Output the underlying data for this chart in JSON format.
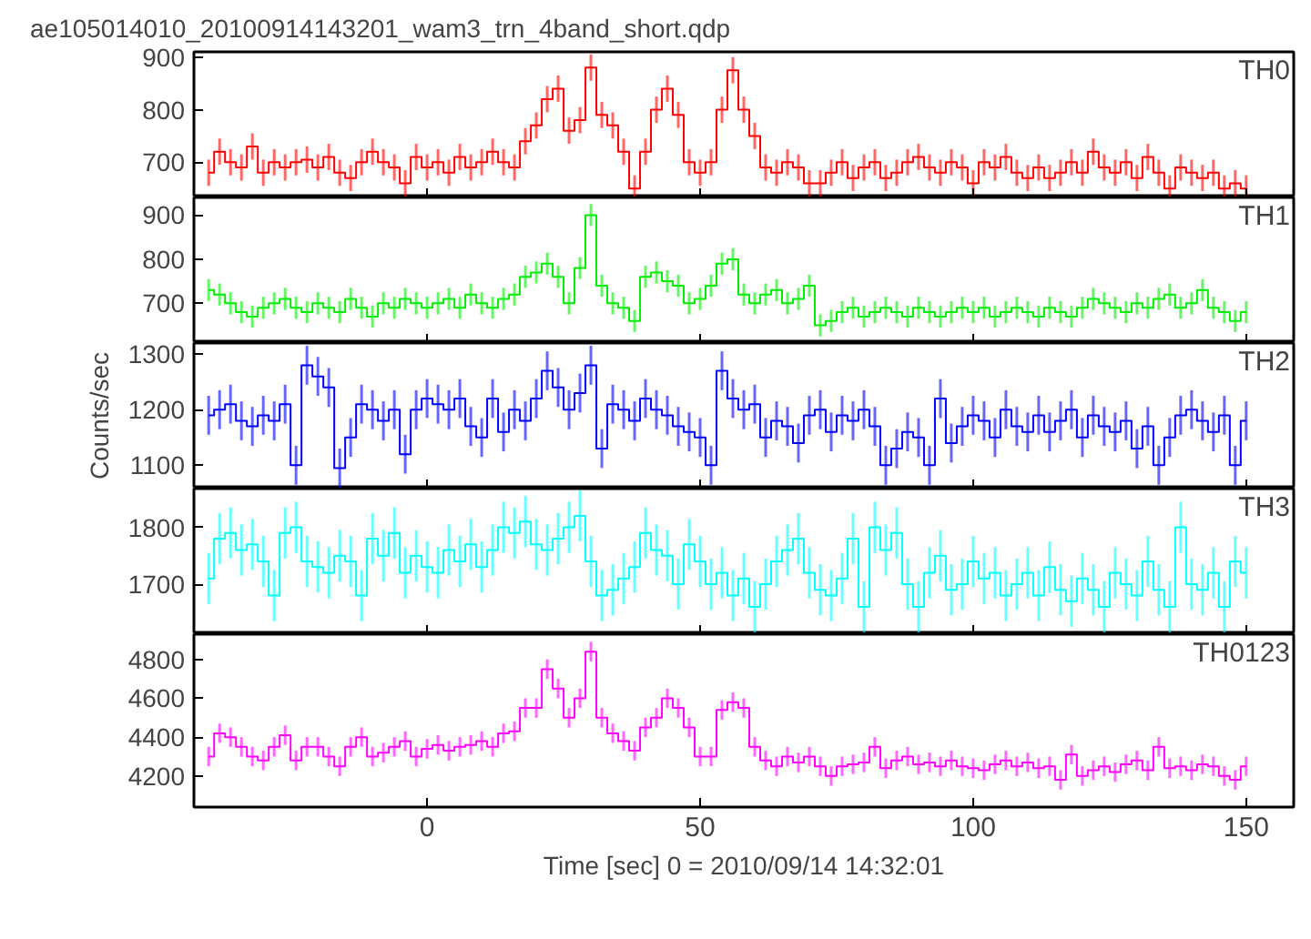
{
  "chart_data": [
    {
      "type": "step",
      "title": "ae105014010_20100914143201_wam3_trn_4band_short.qdp",
      "annotations": [
        "TH0"
      ],
      "color": "#ff0000",
      "tick_labels": "y",
      "xlim": [
        -42.7,
        158.7
      ],
      "xticks": [
        0,
        50,
        100,
        150
      ],
      "ylim": [
        633,
        910
      ],
      "yticks": [
        700,
        800,
        900
      ],
      "x": [
        -40,
        -38,
        -36,
        -34,
        -32,
        -30,
        -28,
        -26,
        -24,
        -22,
        -20,
        -18,
        -16,
        -14,
        -12,
        -10,
        -8,
        -6,
        -4,
        -2,
        0,
        2,
        4,
        6,
        8,
        10,
        12,
        14,
        16,
        18,
        20,
        22,
        24,
        26,
        28,
        30,
        32,
        34,
        36,
        38,
        40,
        42,
        44,
        46,
        48,
        50,
        52,
        54,
        56,
        58,
        60,
        62,
        64,
        66,
        68,
        70,
        72,
        74,
        76,
        78,
        80,
        82,
        84,
        86,
        88,
        90,
        92,
        94,
        96,
        98,
        100,
        102,
        104,
        106,
        108,
        110,
        112,
        114,
        116,
        118,
        120,
        122,
        124,
        126,
        128,
        130,
        132,
        134,
        136,
        138,
        140,
        142,
        144,
        146,
        148,
        150
      ],
      "values": [
        680,
        720,
        700,
        690,
        730,
        680,
        700,
        690,
        700,
        705,
        690,
        710,
        680,
        670,
        700,
        720,
        700,
        690,
        660,
        710,
        690,
        700,
        680,
        710,
        690,
        700,
        720,
        700,
        690,
        740,
        770,
        820,
        840,
        760,
        780,
        880,
        790,
        770,
        720,
        650,
        720,
        800,
        840,
        790,
        700,
        680,
        700,
        800,
        875,
        800,
        750,
        690,
        680,
        700,
        690,
        660,
        660,
        680,
        700,
        670,
        690,
        700,
        670,
        680,
        700,
        710,
        690,
        680,
        700,
        690,
        660,
        700,
        690,
        710,
        680,
        670,
        690,
        670,
        680,
        700,
        680,
        720,
        690,
        680,
        700,
        670,
        710,
        680,
        650,
        690,
        680,
        670,
        680,
        650,
        660,
        650
      ],
      "errors": [
        25,
        25,
        25,
        25,
        25,
        25,
        25,
        25,
        25,
        25,
        25,
        25,
        25,
        25,
        25,
        25,
        25,
        25,
        25,
        25,
        25,
        25,
        25,
        25,
        25,
        25,
        25,
        25,
        25,
        25,
        25,
        25,
        25,
        25,
        25,
        25,
        25,
        25,
        25,
        25,
        25,
        25,
        25,
        25,
        25,
        25,
        25,
        25,
        25,
        25,
        25,
        25,
        25,
        25,
        25,
        25,
        25,
        25,
        25,
        25,
        25,
        25,
        25,
        25,
        25,
        25,
        25,
        25,
        25,
        25,
        25,
        25,
        25,
        25,
        25,
        25,
        25,
        25,
        25,
        25,
        25,
        25,
        25,
        25,
        25,
        25,
        25,
        25,
        25,
        25,
        25,
        25,
        25,
        25,
        25,
        25
      ]
    },
    {
      "type": "step",
      "annotations": [
        "TH1"
      ],
      "color": "#00ee00",
      "tick_labels": "y",
      "xlim": [
        -42.7,
        158.7
      ],
      "xticks": [
        0,
        50,
        100,
        150
      ],
      "ylim": [
        610,
        940
      ],
      "yticks": [
        700,
        800,
        900
      ],
      "x": [
        -40,
        -38,
        -36,
        -34,
        -32,
        -30,
        -28,
        -26,
        -24,
        -22,
        -20,
        -18,
        -16,
        -14,
        -12,
        -10,
        -8,
        -6,
        -4,
        -2,
        0,
        2,
        4,
        6,
        8,
        10,
        12,
        14,
        16,
        18,
        20,
        22,
        24,
        26,
        28,
        30,
        32,
        34,
        36,
        38,
        40,
        42,
        44,
        46,
        48,
        50,
        52,
        54,
        56,
        58,
        60,
        62,
        64,
        66,
        68,
        70,
        72,
        74,
        76,
        78,
        80,
        82,
        84,
        86,
        88,
        90,
        92,
        94,
        96,
        98,
        100,
        102,
        104,
        106,
        108,
        110,
        112,
        114,
        116,
        118,
        120,
        122,
        124,
        126,
        128,
        130,
        132,
        134,
        136,
        138,
        140,
        142,
        144,
        146,
        148,
        150
      ],
      "values": [
        730,
        720,
        700,
        680,
        670,
        690,
        700,
        710,
        690,
        680,
        700,
        690,
        680,
        710,
        690,
        670,
        700,
        690,
        710,
        700,
        690,
        700,
        710,
        690,
        720,
        700,
        690,
        710,
        720,
        760,
        770,
        790,
        760,
        700,
        780,
        900,
        740,
        700,
        690,
        660,
        760,
        770,
        750,
        740,
        700,
        710,
        740,
        790,
        800,
        720,
        700,
        720,
        730,
        700,
        710,
        740,
        650,
        660,
        680,
        690,
        670,
        680,
        690,
        680,
        670,
        690,
        680,
        670,
        680,
        690,
        680,
        690,
        670,
        680,
        690,
        680,
        670,
        690,
        680,
        670,
        690,
        710,
        700,
        690,
        680,
        700,
        690,
        710,
        720,
        690,
        700,
        730,
        690,
        680,
        660,
        680
      ],
      "errors": [
        25,
        25,
        25,
        25,
        25,
        25,
        25,
        25,
        25,
        25,
        25,
        25,
        25,
        25,
        25,
        25,
        25,
        25,
        25,
        25,
        25,
        25,
        25,
        25,
        25,
        25,
        25,
        25,
        25,
        25,
        25,
        25,
        25,
        25,
        25,
        25,
        25,
        25,
        25,
        25,
        25,
        25,
        25,
        25,
        25,
        25,
        25,
        25,
        25,
        25,
        25,
        25,
        25,
        25,
        25,
        25,
        25,
        25,
        25,
        25,
        25,
        25,
        25,
        25,
        25,
        25,
        25,
        25,
        25,
        25,
        25,
        25,
        25,
        25,
        25,
        25,
        25,
        25,
        25,
        25,
        25,
        25,
        25,
        25,
        25,
        25,
        25,
        25,
        25,
        25,
        25,
        25,
        25,
        25,
        25,
        25
      ]
    },
    {
      "type": "step",
      "annotations": [
        "TH2"
      ],
      "ylabel": "Counts/sec",
      "color": "#0000ff",
      "tick_labels": "y",
      "xlim": [
        -42.7,
        158.7
      ],
      "xticks": [
        0,
        50,
        100,
        150
      ],
      "ylim": [
        1058,
        1320
      ],
      "yticks": [
        1100,
        1200,
        1300
      ],
      "x": [
        -40,
        -38,
        -36,
        -34,
        -32,
        -30,
        -28,
        -26,
        -24,
        -22,
        -20,
        -18,
        -16,
        -14,
        -12,
        -10,
        -8,
        -6,
        -4,
        -2,
        0,
        2,
        4,
        6,
        8,
        10,
        12,
        14,
        16,
        18,
        20,
        22,
        24,
        26,
        28,
        30,
        32,
        34,
        36,
        38,
        40,
        42,
        44,
        46,
        48,
        50,
        52,
        54,
        56,
        58,
        60,
        62,
        64,
        66,
        68,
        70,
        72,
        74,
        76,
        78,
        80,
        82,
        84,
        86,
        88,
        90,
        92,
        94,
        96,
        98,
        100,
        102,
        104,
        106,
        108,
        110,
        112,
        114,
        116,
        118,
        120,
        122,
        124,
        126,
        128,
        130,
        132,
        134,
        136,
        138,
        140,
        142,
        144,
        146,
        148,
        150
      ],
      "values": [
        1190,
        1200,
        1210,
        1180,
        1170,
        1190,
        1180,
        1210,
        1100,
        1280,
        1260,
        1240,
        1095,
        1150,
        1210,
        1200,
        1180,
        1200,
        1120,
        1200,
        1220,
        1210,
        1200,
        1220,
        1170,
        1150,
        1220,
        1160,
        1200,
        1180,
        1220,
        1270,
        1240,
        1200,
        1230,
        1280,
        1130,
        1210,
        1200,
        1180,
        1220,
        1200,
        1190,
        1170,
        1160,
        1150,
        1100,
        1270,
        1220,
        1200,
        1210,
        1150,
        1180,
        1170,
        1140,
        1190,
        1200,
        1160,
        1190,
        1180,
        1200,
        1170,
        1100,
        1130,
        1160,
        1150,
        1100,
        1220,
        1140,
        1170,
        1190,
        1180,
        1150,
        1200,
        1170,
        1160,
        1190,
        1160,
        1180,
        1200,
        1150,
        1190,
        1170,
        1160,
        1180,
        1130,
        1170,
        1100,
        1150,
        1190,
        1200,
        1180,
        1160,
        1190,
        1100,
        1180
      ],
      "errors": [
        35,
        35,
        35,
        35,
        35,
        35,
        35,
        35,
        35,
        35,
        35,
        35,
        35,
        35,
        35,
        35,
        35,
        35,
        35,
        35,
        35,
        35,
        35,
        35,
        35,
        35,
        35,
        35,
        35,
        35,
        35,
        35,
        35,
        35,
        35,
        35,
        35,
        35,
        35,
        35,
        35,
        35,
        35,
        35,
        35,
        35,
        35,
        35,
        35,
        35,
        35,
        35,
        35,
        35,
        35,
        35,
        35,
        35,
        35,
        35,
        35,
        35,
        35,
        35,
        35,
        35,
        35,
        35,
        35,
        35,
        35,
        35,
        35,
        35,
        35,
        35,
        35,
        35,
        35,
        35,
        35,
        35,
        35,
        35,
        35,
        35,
        35,
        35,
        35,
        35,
        35,
        35,
        35,
        35,
        35,
        35
      ]
    },
    {
      "type": "step",
      "annotations": [
        "TH3"
      ],
      "color": "#00ffff",
      "tick_labels": "y",
      "xlim": [
        -42.7,
        158.7
      ],
      "xticks": [
        0,
        50,
        100,
        150
      ],
      "ylim": [
        1612,
        1868
      ],
      "yticks": [
        1700,
        1800
      ],
      "x": [
        -40,
        -38,
        -36,
        -34,
        -32,
        -30,
        -28,
        -26,
        -24,
        -22,
        -20,
        -18,
        -16,
        -14,
        -12,
        -10,
        -8,
        -6,
        -4,
        -2,
        0,
        2,
        4,
        6,
        8,
        10,
        12,
        14,
        16,
        18,
        20,
        22,
        24,
        26,
        28,
        30,
        32,
        34,
        36,
        38,
        40,
        42,
        44,
        46,
        48,
        50,
        52,
        54,
        56,
        58,
        60,
        62,
        64,
        66,
        68,
        70,
        72,
        74,
        76,
        78,
        80,
        82,
        84,
        86,
        88,
        90,
        92,
        94,
        96,
        98,
        100,
        102,
        104,
        106,
        108,
        110,
        112,
        114,
        116,
        118,
        120,
        122,
        124,
        126,
        128,
        130,
        132,
        134,
        136,
        138,
        140,
        142,
        144,
        146,
        148,
        150
      ],
      "values": [
        1710,
        1780,
        1790,
        1760,
        1770,
        1740,
        1680,
        1790,
        1800,
        1740,
        1730,
        1720,
        1750,
        1740,
        1680,
        1780,
        1750,
        1790,
        1720,
        1750,
        1730,
        1720,
        1760,
        1740,
        1770,
        1730,
        1760,
        1800,
        1790,
        1810,
        1770,
        1760,
        1780,
        1800,
        1820,
        1740,
        1680,
        1690,
        1710,
        1730,
        1790,
        1760,
        1750,
        1700,
        1770,
        1740,
        1700,
        1720,
        1680,
        1710,
        1660,
        1700,
        1740,
        1760,
        1780,
        1720,
        1690,
        1680,
        1710,
        1780,
        1660,
        1800,
        1760,
        1790,
        1700,
        1660,
        1720,
        1750,
        1690,
        1700,
        1740,
        1710,
        1720,
        1680,
        1700,
        1720,
        1680,
        1730,
        1690,
        1670,
        1710,
        1690,
        1660,
        1720,
        1700,
        1680,
        1740,
        1690,
        1660,
        1800,
        1700,
        1690,
        1720,
        1660,
        1740,
        1720
      ],
      "errors": [
        45,
        45,
        45,
        45,
        45,
        45,
        45,
        45,
        45,
        45,
        45,
        45,
        45,
        45,
        45,
        45,
        45,
        45,
        45,
        45,
        45,
        45,
        45,
        45,
        45,
        45,
        45,
        45,
        45,
        45,
        45,
        45,
        45,
        45,
        45,
        45,
        45,
        45,
        45,
        45,
        45,
        45,
        45,
        45,
        45,
        45,
        45,
        45,
        45,
        45,
        45,
        45,
        45,
        45,
        45,
        45,
        45,
        45,
        45,
        45,
        45,
        45,
        45,
        45,
        45,
        45,
        45,
        45,
        45,
        45,
        45,
        45,
        45,
        45,
        45,
        45,
        45,
        45,
        45,
        45,
        45,
        45,
        45,
        45,
        45,
        45,
        45,
        45,
        45,
        45,
        45,
        45,
        45,
        45,
        45,
        45
      ]
    },
    {
      "type": "step",
      "annotations": [
        "TH0123"
      ],
      "xlabel": "Time [sec] 0 = 2010/09/14 14:32:01",
      "color": "#ff00ff",
      "xlim": [
        -42.7,
        158.7
      ],
      "xticks": [
        0,
        50,
        100,
        150
      ],
      "ylim": [
        4040,
        4930
      ],
      "yticks": [
        4200,
        4400,
        4600,
        4800
      ],
      "x": [
        -40,
        -38,
        -36,
        -34,
        -32,
        -30,
        -28,
        -26,
        -24,
        -22,
        -20,
        -18,
        -16,
        -14,
        -12,
        -10,
        -8,
        -6,
        -4,
        -2,
        0,
        2,
        4,
        6,
        8,
        10,
        12,
        14,
        16,
        18,
        20,
        22,
        24,
        26,
        28,
        30,
        32,
        34,
        36,
        38,
        40,
        42,
        44,
        46,
        48,
        50,
        52,
        54,
        56,
        58,
        60,
        62,
        64,
        66,
        68,
        70,
        72,
        74,
        76,
        78,
        80,
        82,
        84,
        86,
        88,
        90,
        92,
        94,
        96,
        98,
        100,
        102,
        104,
        106,
        108,
        110,
        112,
        114,
        116,
        118,
        120,
        122,
        124,
        126,
        128,
        130,
        132,
        134,
        136,
        138,
        140,
        142,
        144,
        146,
        148,
        150
      ],
      "values": [
        4300,
        4420,
        4400,
        4350,
        4300,
        4280,
        4350,
        4410,
        4280,
        4350,
        4350,
        4300,
        4250,
        4350,
        4400,
        4300,
        4320,
        4350,
        4380,
        4300,
        4340,
        4360,
        4330,
        4350,
        4360,
        4380,
        4350,
        4420,
        4430,
        4550,
        4550,
        4750,
        4650,
        4500,
        4600,
        4840,
        4500,
        4420,
        4380,
        4330,
        4450,
        4500,
        4600,
        4550,
        4450,
        4300,
        4300,
        4540,
        4580,
        4550,
        4350,
        4280,
        4250,
        4300,
        4270,
        4300,
        4250,
        4200,
        4250,
        4260,
        4270,
        4350,
        4240,
        4280,
        4300,
        4260,
        4270,
        4250,
        4280,
        4250,
        4240,
        4230,
        4260,
        4280,
        4250,
        4270,
        4240,
        4250,
        4180,
        4310,
        4200,
        4230,
        4250,
        4220,
        4260,
        4280,
        4230,
        4350,
        4240,
        4250,
        4230,
        4260,
        4250,
        4200,
        4180,
        4250
      ],
      "errors": [
        50,
        50,
        50,
        50,
        50,
        50,
        50,
        50,
        50,
        50,
        50,
        50,
        50,
        50,
        50,
        50,
        50,
        50,
        50,
        50,
        50,
        50,
        50,
        50,
        50,
        50,
        50,
        50,
        50,
        50,
        50,
        50,
        50,
        50,
        50,
        50,
        50,
        50,
        50,
        50,
        50,
        50,
        50,
        50,
        50,
        50,
        50,
        50,
        50,
        50,
        50,
        50,
        50,
        50,
        50,
        50,
        50,
        50,
        50,
        50,
        50,
        50,
        50,
        50,
        50,
        50,
        50,
        50,
        50,
        50,
        50,
        50,
        50,
        50,
        50,
        50,
        50,
        50,
        50,
        50,
        50,
        50,
        50,
        50,
        50,
        50,
        50,
        50,
        50,
        50,
        50,
        50,
        50,
        50,
        50,
        50
      ]
    }
  ]
}
